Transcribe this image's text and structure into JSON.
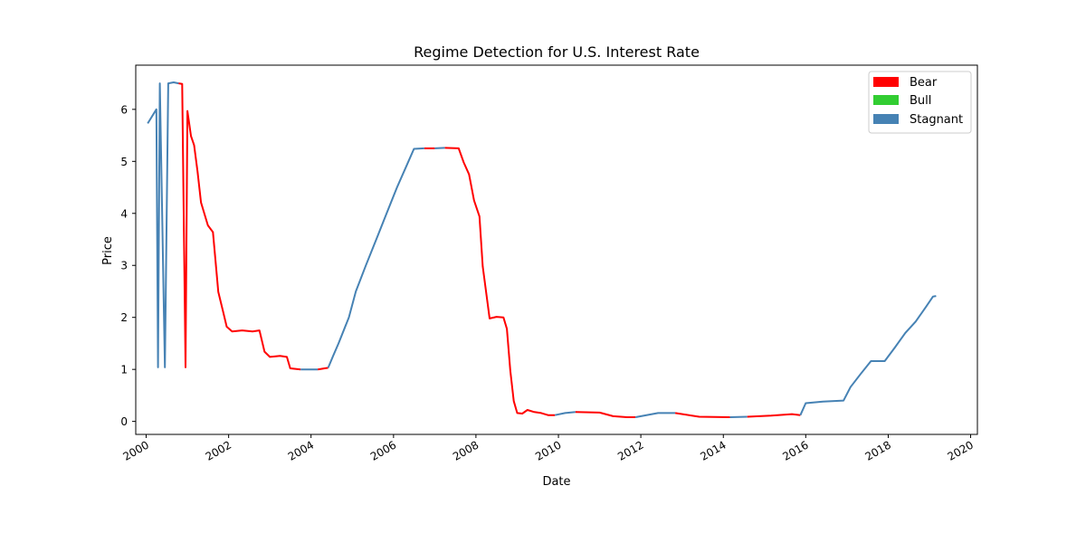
{
  "chart_data": {
    "type": "line",
    "title": "Regime Detection for U.S. Interest Rate",
    "xlabel": "Date",
    "ylabel": "Price",
    "xlim": [
      "1999-10-01",
      "2020-03-01"
    ],
    "ylim": [
      -0.25,
      6.85
    ],
    "x_ticks": [
      "2000",
      "2002",
      "2004",
      "2006",
      "2008",
      "2010",
      "2012",
      "2014",
      "2016",
      "2018",
      "2020"
    ],
    "y_ticks": [
      "0",
      "1",
      "2",
      "3",
      "4",
      "5",
      "6"
    ],
    "grid": false,
    "legend_position": "top-right",
    "colors": {
      "Bear": "#ff0000",
      "Bull": "#32cd32",
      "Stagnant": "#4682b4"
    },
    "legend": [
      "Bear",
      "Bull",
      "Stagnant"
    ],
    "series": [
      {
        "name": "Stagnant",
        "color": "#4682b4",
        "points": [
          [
            "2000-01-15",
            5.73
          ],
          [
            "2000-04-01",
            6.0
          ],
          [
            "2000-04-15",
            1.04
          ],
          [
            "2000-05-01",
            6.5
          ],
          [
            "2000-06-15",
            1.04
          ],
          [
            "2000-07-15",
            6.5
          ],
          [
            "2000-09-01",
            6.52
          ],
          [
            "2000-10-15",
            6.5
          ]
        ]
      },
      {
        "name": "Bear",
        "color": "#ff0000",
        "points": [
          [
            "2000-10-15",
            6.5
          ],
          [
            "2000-11-15",
            6.49
          ],
          [
            "2000-12-15",
            1.04
          ],
          [
            "2001-01-01",
            5.97
          ],
          [
            "2001-02-01",
            5.49
          ],
          [
            "2001-03-01",
            5.31
          ],
          [
            "2001-04-01",
            4.8
          ],
          [
            "2001-05-01",
            4.21
          ],
          [
            "2001-07-01",
            3.77
          ],
          [
            "2001-08-15",
            3.64
          ],
          [
            "2001-10-01",
            2.49
          ],
          [
            "2001-11-15",
            2.09
          ],
          [
            "2001-12-15",
            1.82
          ],
          [
            "2002-02-01",
            1.73
          ],
          [
            "2002-05-01",
            1.75
          ],
          [
            "2002-08-01",
            1.73
          ],
          [
            "2002-10-01",
            1.75
          ],
          [
            "2002-11-15",
            1.34
          ],
          [
            "2003-01-01",
            1.24
          ],
          [
            "2003-04-01",
            1.26
          ],
          [
            "2003-06-01",
            1.24
          ],
          [
            "2003-07-01",
            1.02
          ],
          [
            "2003-10-01",
            1.0
          ]
        ]
      },
      {
        "name": "Stagnant",
        "color": "#4682b4",
        "points": [
          [
            "2003-10-01",
            1.0
          ],
          [
            "2004-03-01",
            1.0
          ]
        ]
      },
      {
        "name": "Bear",
        "color": "#ff0000",
        "points": [
          [
            "2004-03-01",
            1.0
          ],
          [
            "2004-06-01",
            1.03
          ]
        ]
      },
      {
        "name": "Stagnant",
        "color": "#4682b4",
        "points": [
          [
            "2004-06-01",
            1.03
          ],
          [
            "2004-07-15",
            1.26
          ],
          [
            "2004-09-01",
            1.5
          ],
          [
            "2004-12-01",
            2.0
          ],
          [
            "2005-02-01",
            2.5
          ],
          [
            "2005-05-01",
            3.0
          ],
          [
            "2005-08-01",
            3.5
          ],
          [
            "2005-11-01",
            4.0
          ],
          [
            "2006-02-01",
            4.5
          ],
          [
            "2006-05-01",
            4.94
          ],
          [
            "2006-07-01",
            5.24
          ],
          [
            "2006-10-01",
            5.25
          ]
        ]
      },
      {
        "name": "Bear",
        "color": "#ff0000",
        "points": [
          [
            "2006-10-01",
            5.25
          ],
          [
            "2007-01-01",
            5.25
          ]
        ]
      },
      {
        "name": "Stagnant",
        "color": "#4682b4",
        "points": [
          [
            "2007-01-01",
            5.25
          ],
          [
            "2007-04-01",
            5.26
          ]
        ]
      },
      {
        "name": "Bear",
        "color": "#ff0000",
        "points": [
          [
            "2007-04-01",
            5.26
          ],
          [
            "2007-08-01",
            5.25
          ],
          [
            "2007-09-15",
            4.98
          ],
          [
            "2007-11-01",
            4.75
          ],
          [
            "2007-12-15",
            4.25
          ],
          [
            "2008-02-01",
            3.94
          ],
          [
            "2008-03-01",
            2.98
          ],
          [
            "2008-05-01",
            1.98
          ],
          [
            "2008-07-01",
            2.01
          ],
          [
            "2008-09-01",
            2.0
          ],
          [
            "2008-10-01",
            1.78
          ],
          [
            "2008-11-01",
            0.97
          ],
          [
            "2008-12-01",
            0.39
          ],
          [
            "2009-01-01",
            0.16
          ],
          [
            "2009-02-15",
            0.15
          ],
          [
            "2009-04-01",
            0.22
          ],
          [
            "2009-06-01",
            0.18
          ],
          [
            "2009-08-01",
            0.16
          ],
          [
            "2009-10-01",
            0.12
          ],
          [
            "2009-12-01",
            0.12
          ]
        ]
      },
      {
        "name": "Stagnant",
        "color": "#4682b4",
        "points": [
          [
            "2009-12-01",
            0.12
          ],
          [
            "2010-03-01",
            0.16
          ],
          [
            "2010-06-01",
            0.18
          ]
        ]
      },
      {
        "name": "Bear",
        "color": "#ff0000",
        "points": [
          [
            "2010-06-01",
            0.18
          ],
          [
            "2011-01-01",
            0.17
          ],
          [
            "2011-05-01",
            0.1
          ],
          [
            "2011-09-01",
            0.08
          ],
          [
            "2011-11-15",
            0.08
          ]
        ]
      },
      {
        "name": "Stagnant",
        "color": "#4682b4",
        "points": [
          [
            "2011-11-15",
            0.08
          ],
          [
            "2012-06-01",
            0.16
          ],
          [
            "2012-11-01",
            0.16
          ]
        ]
      },
      {
        "name": "Bear",
        "color": "#ff0000",
        "points": [
          [
            "2012-11-01",
            0.16
          ],
          [
            "2013-06-01",
            0.09
          ],
          [
            "2014-03-01",
            0.08
          ]
        ]
      },
      {
        "name": "Stagnant",
        "color": "#4682b4",
        "points": [
          [
            "2014-03-01",
            0.08
          ],
          [
            "2014-08-01",
            0.09
          ]
        ]
      },
      {
        "name": "Bear",
        "color": "#ff0000",
        "points": [
          [
            "2014-08-01",
            0.09
          ],
          [
            "2015-03-01",
            0.11
          ],
          [
            "2015-09-01",
            0.14
          ],
          [
            "2015-11-15",
            0.12
          ]
        ]
      },
      {
        "name": "Stagnant",
        "color": "#4682b4",
        "points": [
          [
            "2015-11-15",
            0.12
          ],
          [
            "2016-01-01",
            0.35
          ],
          [
            "2016-06-01",
            0.38
          ],
          [
            "2016-12-01",
            0.4
          ],
          [
            "2017-02-01",
            0.66
          ],
          [
            "2017-05-01",
            0.91
          ],
          [
            "2017-08-01",
            1.16
          ],
          [
            "2017-12-01",
            1.16
          ],
          [
            "2018-03-01",
            1.42
          ],
          [
            "2018-06-01",
            1.7
          ],
          [
            "2018-09-01",
            1.92
          ],
          [
            "2018-12-01",
            2.2
          ],
          [
            "2019-02-01",
            2.4
          ],
          [
            "2019-03-01",
            2.41
          ]
        ]
      }
    ]
  }
}
